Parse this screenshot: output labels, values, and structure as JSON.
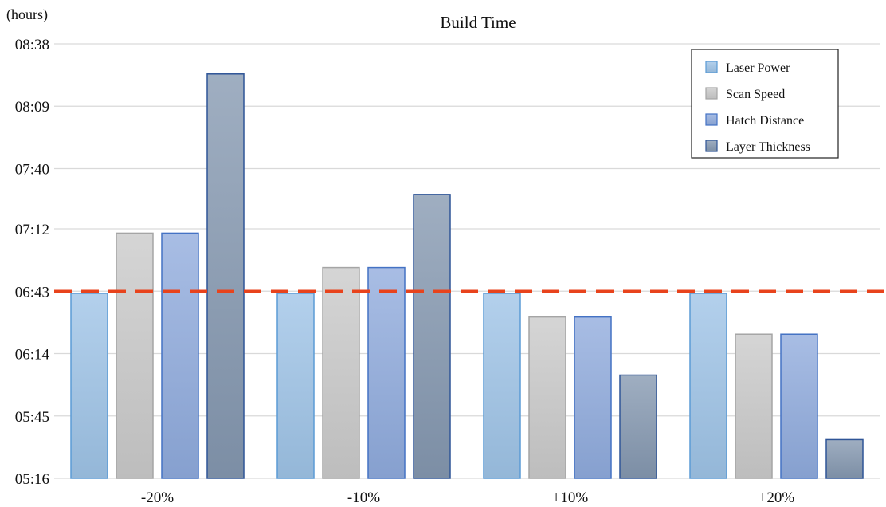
{
  "chart_data": {
    "type": "bar",
    "title": "Build Time",
    "ylabel": "(hours)",
    "xlabel": "",
    "categories": [
      "-20%",
      "-10%",
      "+10%",
      "+20%"
    ],
    "y_ticks": [
      "05:16",
      "05:45",
      "06:14",
      "06:43",
      "07:12",
      "07:40",
      "08:09",
      "08:38"
    ],
    "ylim": [
      "05:16",
      "08:38"
    ],
    "grid": true,
    "legend_position": "top-right",
    "series": [
      {
        "name": "Laser Power",
        "values": [
          "06:42",
          "06:42",
          "06:42",
          "06:42"
        ],
        "color": "#9dc3e6"
      },
      {
        "name": "Scan Speed",
        "values": [
          "07:10",
          "06:54",
          "06:31",
          "06:23"
        ],
        "color": "#c9c9c9"
      },
      {
        "name": "Hatch Distance",
        "values": [
          "07:10",
          "06:54",
          "06:31",
          "06:23"
        ],
        "color": "#8faadc"
      },
      {
        "name": "Layer Thickness",
        "values": [
          "08:24",
          "07:28",
          "06:04",
          "05:34"
        ],
        "color": "#8497b0"
      }
    ],
    "reference_line": {
      "value": "06:43",
      "style": "dashed",
      "color": "#e8431c"
    }
  }
}
